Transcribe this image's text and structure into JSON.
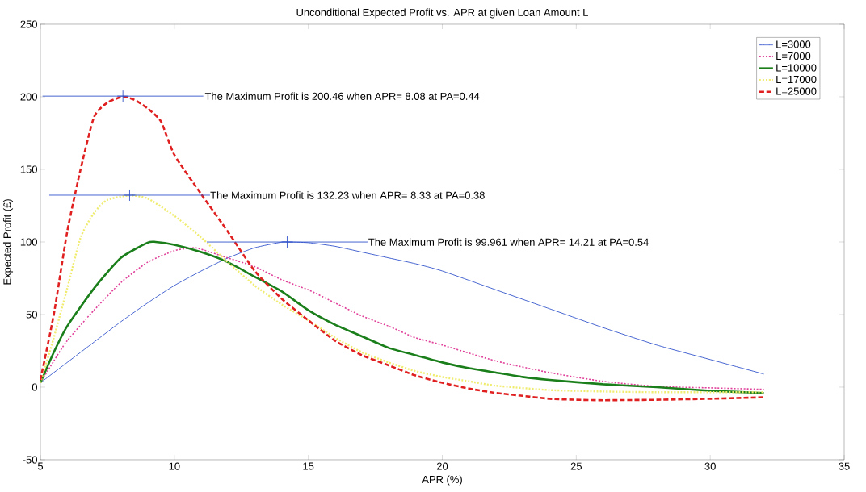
{
  "chart_data": {
    "type": "line",
    "title": "Unconditional Expected Profit vs. APR at given Loan Amount L",
    "xlabel": "APR (%)",
    "ylabel": "Expected Profit (£)",
    "xlim": [
      5,
      35
    ],
    "ylim": [
      -50,
      250
    ],
    "xticks": [
      5,
      10,
      15,
      20,
      25,
      30,
      35
    ],
    "yticks": [
      -50,
      0,
      50,
      100,
      150,
      200,
      250
    ],
    "legend": "top right",
    "marker": "none",
    "grid": false,
    "annotations": [
      {
        "text": "The Maximum Profit is 200.46 when APR= 8.08 at PA=0.44",
        "x": 11.1,
        "y": 200.46
      },
      {
        "text": "The Maximum Profit is 132.23 when APR= 8.33 at PA=0.38",
        "x": 11.3,
        "y": 132.23
      },
      {
        "text": "The Maximum Profit is 99.961 when APR= 14.21 at PA=0.54",
        "x": 17.2,
        "y": 99.961
      }
    ],
    "series": [
      {
        "name": "L=3000",
        "color": "#3355cc",
        "line_style": "solid",
        "x": [
          5,
          6,
          7,
          8,
          9,
          10,
          11,
          12,
          13,
          14,
          14.21,
          15,
          16,
          17,
          18,
          19,
          20,
          22,
          24,
          26,
          28,
          30,
          32
        ],
        "values": [
          3,
          17,
          31,
          45,
          58,
          70,
          80,
          89,
          96,
          99.9,
          100,
          99.5,
          97,
          93,
          89,
          85,
          80,
          67,
          54,
          41,
          29,
          19,
          9
        ]
      },
      {
        "name": "L=7000",
        "color": "#e0409a",
        "line_style": "dotted",
        "x": [
          5,
          5.5,
          6,
          7,
          8,
          9,
          10,
          10.7,
          11,
          12,
          13,
          14,
          15,
          16,
          17,
          18,
          19,
          20,
          22,
          24,
          26,
          28,
          30,
          32
        ],
        "values": [
          3,
          18,
          32,
          53,
          72,
          86,
          94,
          96,
          95,
          89,
          83,
          74,
          67,
          58,
          49,
          42,
          34,
          29,
          18,
          10,
          4,
          0.5,
          -0.5,
          -1.5
        ]
      },
      {
        "name": "L=10000",
        "color": "#1a7f1a",
        "line_style": "solid",
        "x": [
          5,
          5.5,
          6,
          7,
          8,
          9,
          9.3,
          10,
          11,
          12,
          13,
          14,
          15,
          16,
          17,
          18,
          19,
          20,
          21,
          22,
          23,
          24,
          26,
          28,
          30,
          32
        ],
        "values": [
          3,
          24,
          42,
          68,
          89,
          99.5,
          100,
          98,
          93,
          86,
          76,
          66,
          53,
          43,
          35,
          27,
          22,
          17,
          13,
          10,
          7,
          5,
          2,
          0,
          -2.5,
          -4
        ]
      },
      {
        "name": "L=17000",
        "color": "#f0ec70",
        "line_style": "dotted",
        "x": [
          5,
          5.5,
          6,
          6.5,
          7,
          7.5,
          8.33,
          9,
          10,
          11,
          12,
          13,
          14,
          15,
          16,
          17,
          18,
          19,
          20,
          21,
          22,
          24,
          26,
          28,
          30,
          32
        ],
        "values": [
          3,
          34,
          68,
          103,
          120,
          129,
          132,
          130,
          118,
          103,
          86,
          70,
          57,
          46,
          34,
          24,
          17,
          11,
          7,
          4,
          1,
          -2,
          -3,
          -3.5,
          -3.5,
          -3.5
        ]
      },
      {
        "name": "L=25000",
        "color": "#e02020",
        "line_style": "dashed",
        "x": [
          5,
          5.5,
          6,
          6.5,
          7,
          7.5,
          8.08,
          8.5,
          9,
          9.5,
          10,
          11,
          12,
          13,
          14,
          15,
          16,
          17,
          18,
          19,
          20,
          21,
          22,
          23,
          24,
          25,
          26,
          28,
          30,
          32
        ],
        "values": [
          5,
          50,
          107,
          150,
          186,
          196,
          200,
          198,
          192,
          183,
          160,
          133,
          107,
          80,
          61,
          46,
          32,
          22,
          15,
          8,
          3,
          -1,
          -4,
          -6,
          -8,
          -8.7,
          -9,
          -8.7,
          -8,
          -7
        ]
      },
      {
        "type": "scatter",
        "color": "#3355cc",
        "marker": "cross",
        "x": [
          8.08,
          8.33,
          14.21
        ],
        "values": [
          200.46,
          132.23,
          99.961
        ],
        "xerrors": [
          3,
          3,
          3
        ]
      }
    ]
  }
}
